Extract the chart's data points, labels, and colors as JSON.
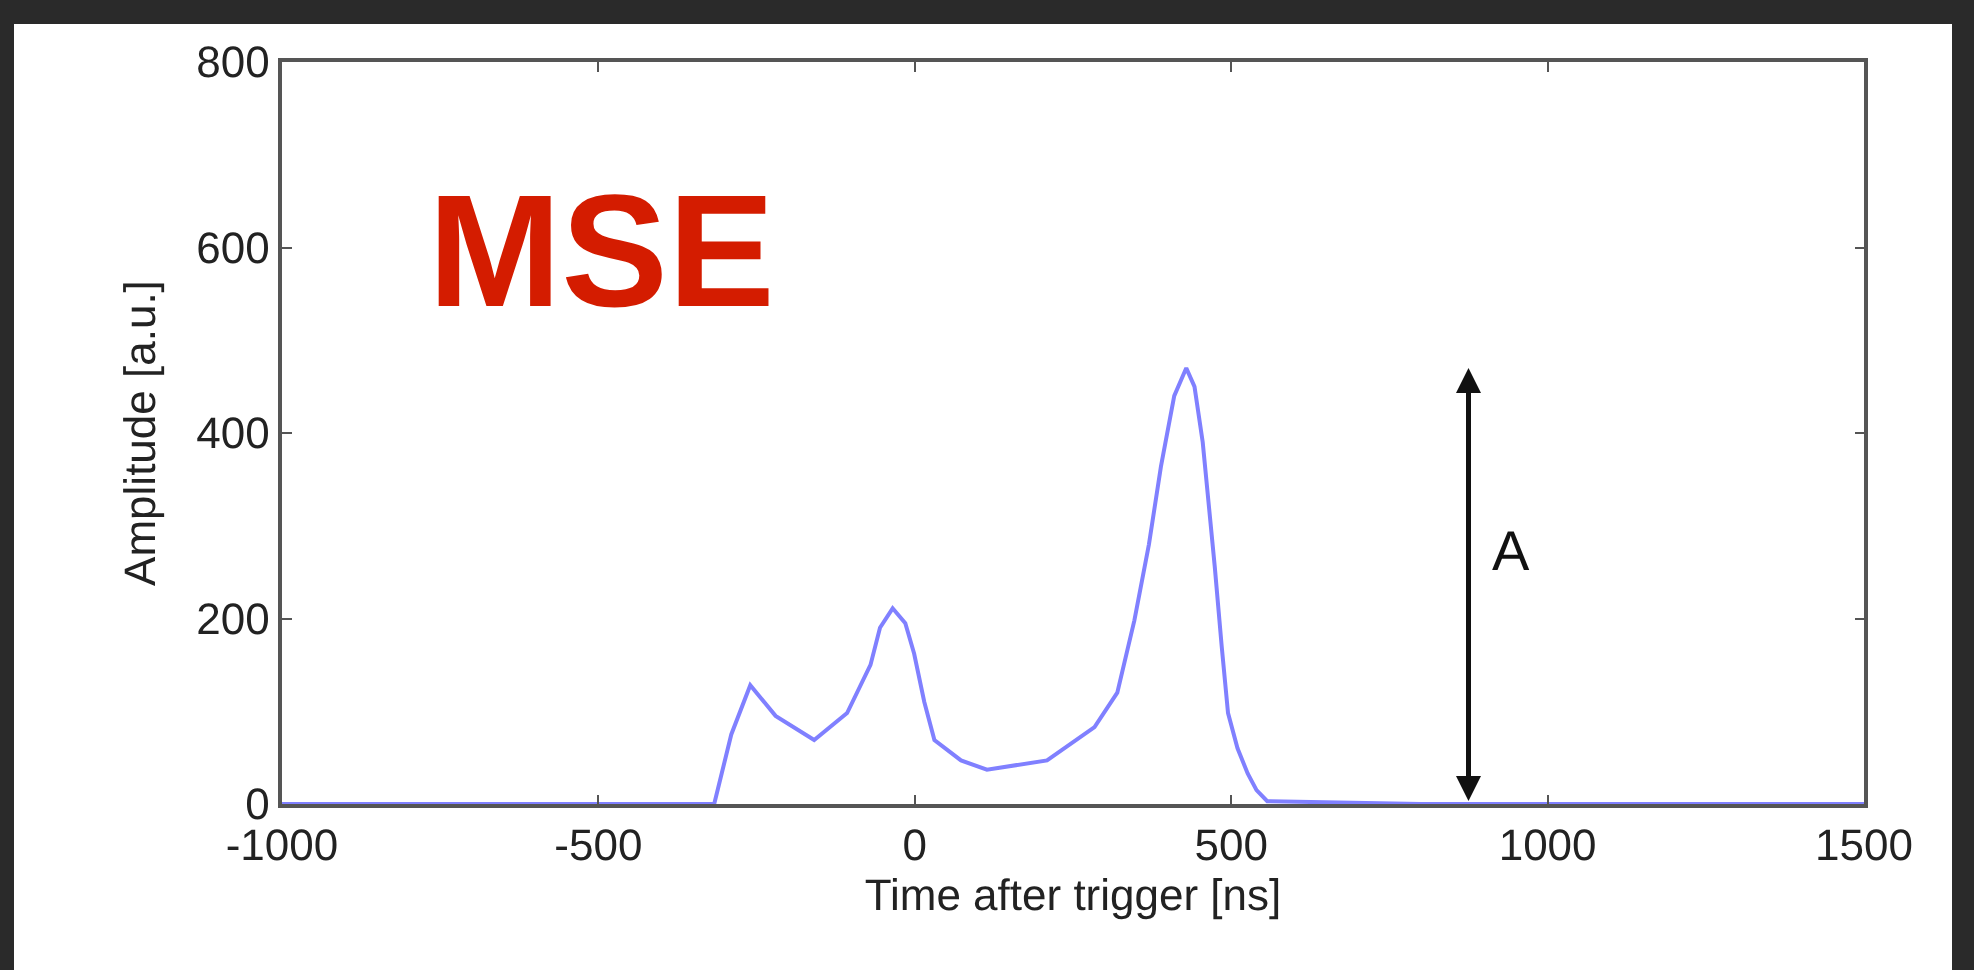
{
  "chart_data": {
    "type": "line",
    "xlabel": "Time after trigger [ns]",
    "ylabel": "Amplitude [a.u.]",
    "xlim": [
      -1000,
      1500
    ],
    "xticks": [
      -1000,
      -500,
      0,
      500,
      1000,
      1500
    ],
    "ylim": [
      0,
      800
    ],
    "yticks": [
      0,
      200,
      400,
      600,
      800
    ],
    "marker": "none",
    "line_style": "solid",
    "x": [
      -1000,
      -700,
      -317,
      -290,
      -260,
      -220,
      -159,
      -107,
      -70,
      -55,
      -35,
      -15,
      -1,
      15,
      31,
      73,
      114,
      209,
      284,
      320,
      347,
      370,
      389,
      410,
      429,
      442,
      455,
      474,
      485,
      495,
      510,
      526,
      540,
      557,
      800,
      1500
    ],
    "series": [
      {
        "color": "#8080ff",
        "values": [
          0,
          0,
          0,
          75,
          128,
          95,
          69,
          98,
          150,
          190,
          211,
          195,
          162,
          110,
          69,
          47,
          37,
          47,
          83,
          120,
          198,
          280,
          364,
          440,
          470,
          450,
          390,
          256,
          170,
          98,
          60,
          33,
          15,
          3,
          0,
          0
        ]
      }
    ],
    "annotations": [
      "MSE",
      "A"
    ]
  }
}
